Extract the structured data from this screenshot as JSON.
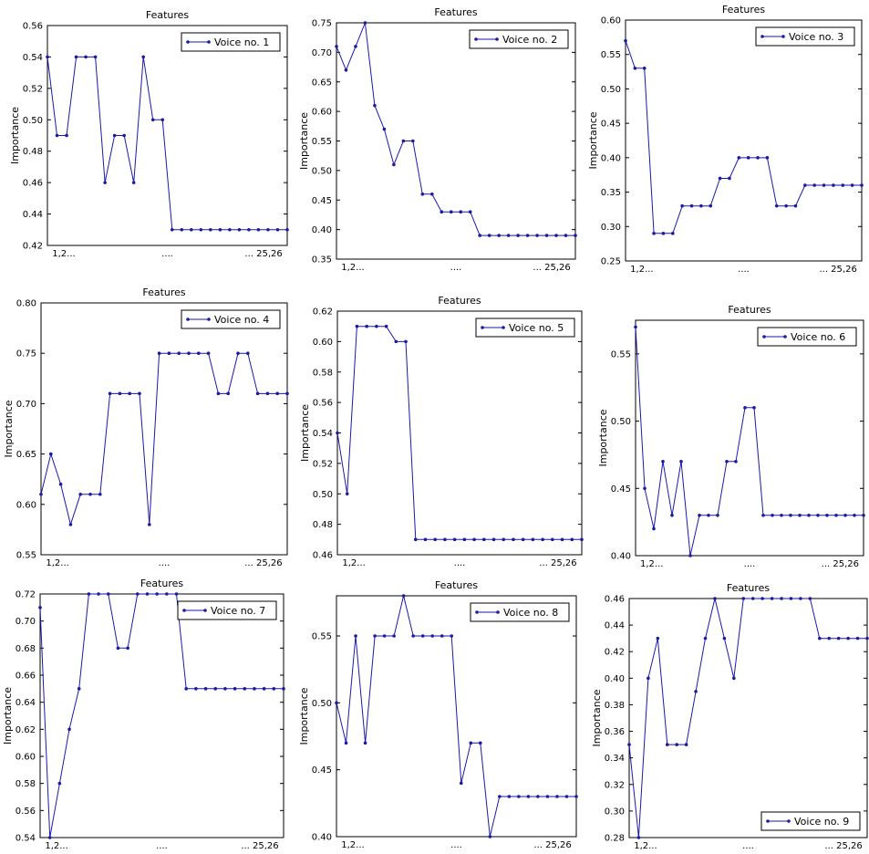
{
  "chart_data": [
    {
      "type": "line",
      "title": "Features",
      "ylabel": "Importance",
      "x_ticks": [
        "1,2...",
        "....",
        "... 25,26"
      ],
      "ylim": [
        0.42,
        0.56
      ],
      "yticks": [
        0.42,
        0.44,
        0.46,
        0.48,
        0.5,
        0.52,
        0.54,
        0.56
      ],
      "legend": "top-right",
      "series": [
        {
          "name": "Voice no. 1",
          "color": "#1a1aa6",
          "values": [
            0.54,
            0.49,
            0.49,
            0.54,
            0.54,
            0.54,
            0.46,
            0.49,
            0.49,
            0.46,
            0.54,
            0.5,
            0.5,
            0.43,
            0.43,
            0.43,
            0.43,
            0.43,
            0.43,
            0.43,
            0.43,
            0.43,
            0.43,
            0.43,
            0.43,
            0.43
          ]
        }
      ]
    },
    {
      "type": "line",
      "title": "Features",
      "ylabel": "Importance",
      "x_ticks": [
        "1,2...",
        "....",
        "... 25,26"
      ],
      "ylim": [
        0.35,
        0.75
      ],
      "yticks": [
        0.35,
        0.4,
        0.45,
        0.5,
        0.55,
        0.6,
        0.65,
        0.7,
        0.75
      ],
      "legend": "top-right",
      "series": [
        {
          "name": "Voice no. 2",
          "color": "#1a1aa6",
          "values": [
            0.71,
            0.67,
            0.71,
            0.75,
            0.61,
            0.57,
            0.51,
            0.55,
            0.55,
            0.46,
            0.46,
            0.43,
            0.43,
            0.43,
            0.43,
            0.39,
            0.39,
            0.39,
            0.39,
            0.39,
            0.39,
            0.39,
            0.39,
            0.39,
            0.39,
            0.39
          ]
        }
      ]
    },
    {
      "type": "line",
      "title": "Features",
      "ylabel": "Importance",
      "x_ticks": [
        "1,2...",
        "....",
        "... 25,26"
      ],
      "ylim": [
        0.25,
        0.6
      ],
      "yticks": [
        0.25,
        0.3,
        0.35,
        0.4,
        0.45,
        0.5,
        0.55,
        0.6
      ],
      "legend": "top-right",
      "series": [
        {
          "name": "Voice no. 3",
          "color": "#1a1aa6",
          "values": [
            0.57,
            0.53,
            0.53,
            0.29,
            0.29,
            0.29,
            0.33,
            0.33,
            0.33,
            0.33,
            0.37,
            0.37,
            0.4,
            0.4,
            0.4,
            0.4,
            0.33,
            0.33,
            0.33,
            0.36,
            0.36,
            0.36,
            0.36,
            0.36,
            0.36,
            0.36
          ]
        }
      ]
    },
    {
      "type": "line",
      "title": "Features",
      "ylabel": "Importance",
      "x_ticks": [
        "1,2...",
        "....",
        "... 25,26"
      ],
      "ylim": [
        0.55,
        0.8
      ],
      "yticks": [
        0.55,
        0.6,
        0.65,
        0.7,
        0.75,
        0.8
      ],
      "legend": "top-right",
      "series": [
        {
          "name": "Voice no. 4",
          "color": "#1a1aa6",
          "values": [
            0.61,
            0.65,
            0.62,
            0.58,
            0.61,
            0.61,
            0.61,
            0.71,
            0.71,
            0.71,
            0.71,
            0.58,
            0.75,
            0.75,
            0.75,
            0.75,
            0.75,
            0.75,
            0.71,
            0.71,
            0.75,
            0.75,
            0.71,
            0.71,
            0.71,
            0.71
          ]
        }
      ]
    },
    {
      "type": "line",
      "title": "Features",
      "ylabel": "Importance",
      "x_ticks": [
        "1,2...",
        "....",
        "... 25,26"
      ],
      "ylim": [
        0.46,
        0.62
      ],
      "yticks": [
        0.46,
        0.48,
        0.5,
        0.52,
        0.54,
        0.56,
        0.58,
        0.6,
        0.62
      ],
      "legend": "top-right",
      "series": [
        {
          "name": "Voice no. 5",
          "color": "#1a1aa6",
          "values": [
            0.54,
            0.5,
            0.61,
            0.61,
            0.61,
            0.61,
            0.6,
            0.6,
            0.47,
            0.47,
            0.47,
            0.47,
            0.47,
            0.47,
            0.47,
            0.47,
            0.47,
            0.47,
            0.47,
            0.47,
            0.47,
            0.47,
            0.47,
            0.47,
            0.47,
            0.47
          ]
        }
      ]
    },
    {
      "type": "line",
      "title": "Features",
      "ylabel": "Importance",
      "x_ticks": [
        "1,2...",
        "....",
        "... 25,26"
      ],
      "ylim": [
        0.4,
        0.575
      ],
      "yticks": [
        0.4,
        0.45,
        0.5,
        0.55
      ],
      "legend": "top-right",
      "series": [
        {
          "name": "Voice no. 6",
          "color": "#1a1aa6",
          "values": [
            0.57,
            0.45,
            0.42,
            0.47,
            0.43,
            0.47,
            0.4,
            0.43,
            0.43,
            0.43,
            0.47,
            0.47,
            0.51,
            0.51,
            0.43,
            0.43,
            0.43,
            0.43,
            0.43,
            0.43,
            0.43,
            0.43,
            0.43,
            0.43,
            0.43,
            0.43
          ]
        }
      ]
    },
    {
      "type": "line",
      "title": "Features",
      "ylabel": "Importance",
      "x_ticks": [
        "1,2...",
        "....",
        "... 25,26"
      ],
      "ylim": [
        0.54,
        0.72
      ],
      "yticks": [
        0.54,
        0.56,
        0.58,
        0.6,
        0.62,
        0.64,
        0.66,
        0.68,
        0.7,
        0.72
      ],
      "legend": "top-right",
      "series": [
        {
          "name": "Voice no. 7",
          "color": "#1a1aa6",
          "values": [
            0.71,
            0.54,
            0.58,
            0.62,
            0.65,
            0.72,
            0.72,
            0.72,
            0.68,
            0.68,
            0.72,
            0.72,
            0.72,
            0.72,
            0.72,
            0.65,
            0.65,
            0.65,
            0.65,
            0.65,
            0.65,
            0.65,
            0.65,
            0.65,
            0.65,
            0.65
          ]
        }
      ]
    },
    {
      "type": "line",
      "title": "Features",
      "ylabel": "Importance",
      "x_ticks": [
        "1,2...",
        "....",
        "... 25,26"
      ],
      "ylim": [
        0.4,
        0.58
      ],
      "yticks": [
        0.4,
        0.45,
        0.5,
        0.55
      ],
      "legend": "top-right",
      "series": [
        {
          "name": "Voice no. 8",
          "color": "#1a1aa6",
          "values": [
            0.5,
            0.47,
            0.55,
            0.47,
            0.55,
            0.55,
            0.55,
            0.58,
            0.55,
            0.55,
            0.55,
            0.55,
            0.55,
            0.44,
            0.47,
            0.47,
            0.4,
            0.43,
            0.43,
            0.43,
            0.43,
            0.43,
            0.43,
            0.43,
            0.43,
            0.43
          ]
        }
      ]
    },
    {
      "type": "line",
      "title": "Features",
      "ylabel": "Importance",
      "x_ticks": [
        "1,2...",
        "....",
        "... 25,26"
      ],
      "ylim": [
        0.28,
        0.46
      ],
      "yticks": [
        0.28,
        0.3,
        0.32,
        0.34,
        0.36,
        0.38,
        0.4,
        0.42,
        0.44,
        0.46
      ],
      "legend": "bottom-right",
      "series": [
        {
          "name": "Voice no. 9",
          "color": "#1a1aa6",
          "values": [
            0.35,
            0.28,
            0.4,
            0.43,
            0.35,
            0.35,
            0.35,
            0.39,
            0.43,
            0.46,
            0.43,
            0.4,
            0.46,
            0.46,
            0.46,
            0.46,
            0.46,
            0.46,
            0.46,
            0.46,
            0.43,
            0.43,
            0.43,
            0.43,
            0.43,
            0.43
          ]
        }
      ]
    }
  ]
}
